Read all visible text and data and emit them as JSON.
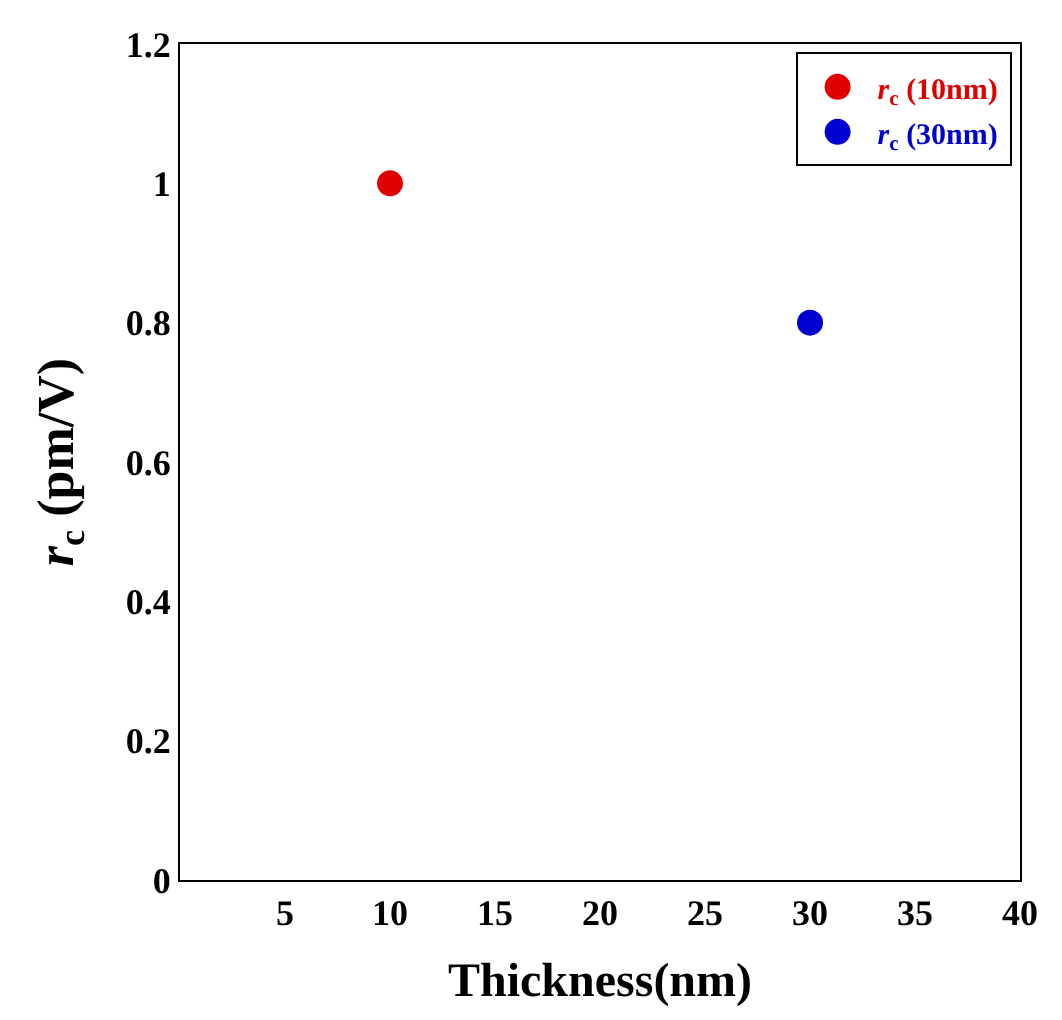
{
  "chart_data": {
    "type": "scatter",
    "xlabel": "Thickness(nm)",
    "ylabel": "r$_{c}$ (pm/V)",
    "xlim": [
      0,
      40
    ],
    "xticks": [
      5,
      10,
      15,
      20,
      25,
      30,
      35,
      40
    ],
    "ylim": [
      0,
      1.2
    ],
    "yticks": [
      0,
      0.2,
      0.4,
      0.6,
      0.8,
      1,
      1.2
    ],
    "legend": "top right",
    "marker": "circle",
    "series": [
      {
        "name": "r$_{c}$ (10nm)",
        "color": "#e00000",
        "x": [
          10
        ],
        "values": [
          1.0
        ]
      },
      {
        "name": "r$_{c}$ (30nm)",
        "color": "#0000d0",
        "x": [
          30
        ],
        "values": [
          0.8
        ]
      }
    ]
  }
}
